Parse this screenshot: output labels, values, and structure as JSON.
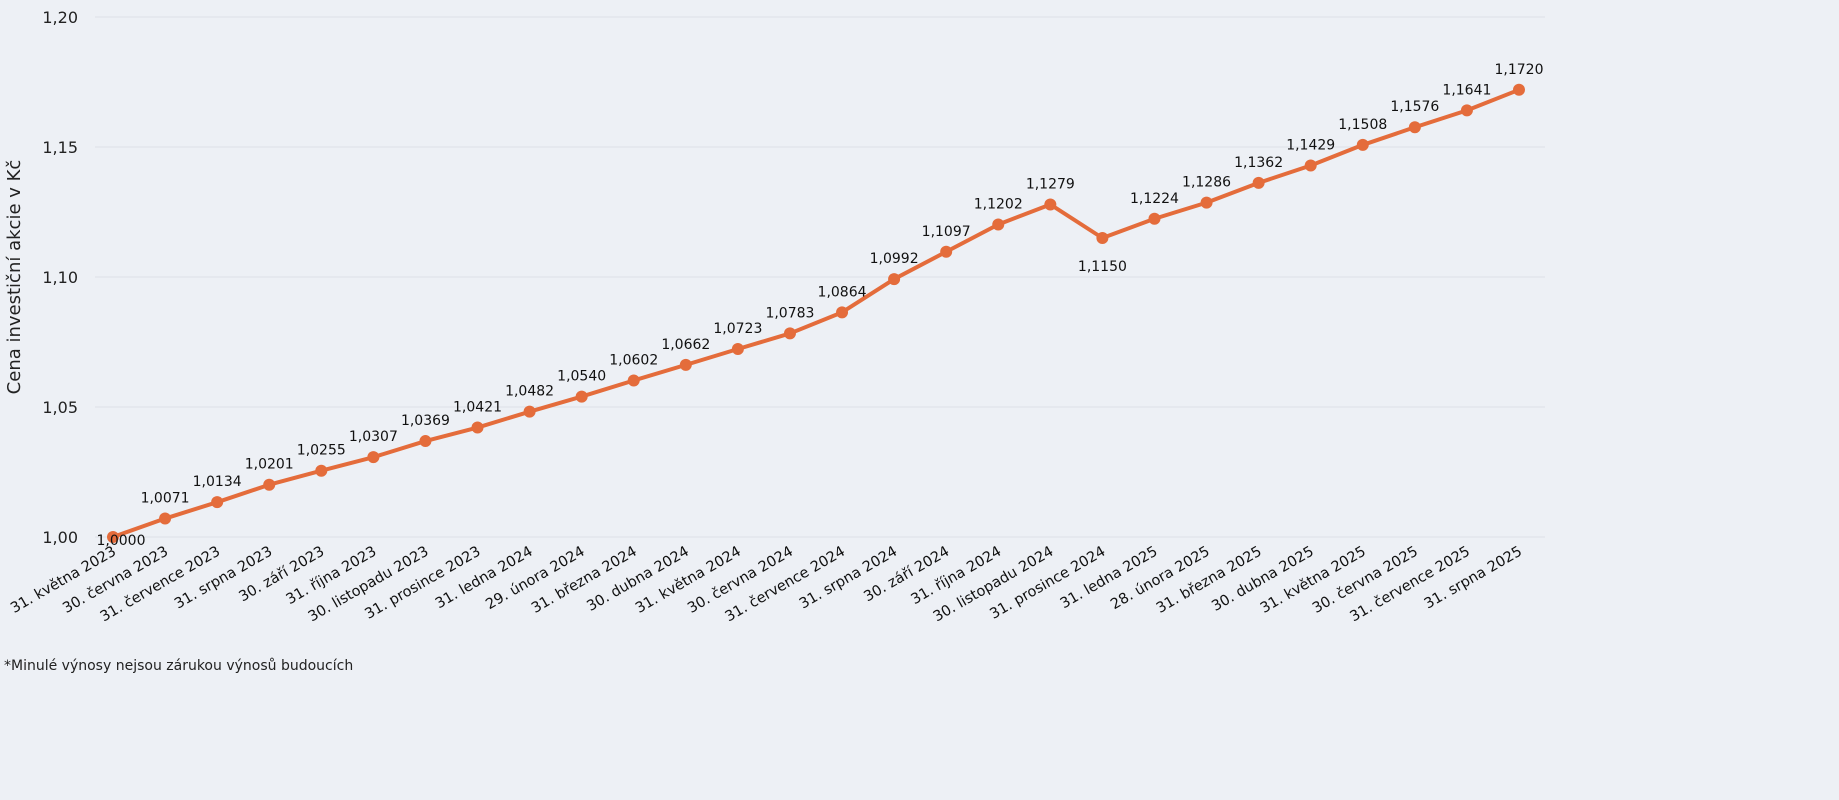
{
  "chart_data": {
    "type": "line",
    "title": "",
    "xlabel": "",
    "ylabel": "Cena investiční akcie v Kč",
    "ylim": [
      1.0,
      1.2
    ],
    "yticks": [
      "1,00",
      "1,05",
      "1,10",
      "1,15",
      "1,20"
    ],
    "ytick_values": [
      1.0,
      1.05,
      1.1,
      1.15,
      1.2
    ],
    "grid": true,
    "line_color": "#e46c3b",
    "categories": [
      "31. května 2023",
      "30. června 2023",
      "31. července 2023",
      "31. srpna 2023",
      "30. září 2023",
      "31. října 2023",
      "30. listopadu 2023",
      "31. prosince 2023",
      "31. ledna 2024",
      "29. února 2024",
      "31. března 2024",
      "30. dubna 2024",
      "31. května 2024",
      "30. června 2024",
      "31. července 2024",
      "31. srpna 2024",
      "30. září 2024",
      "31. října 2024",
      "30. listopadu 2024",
      "31. prosince 2024",
      "31. ledna 2025",
      "28. února 2025",
      "31. března 2025",
      "30. dubna 2025",
      "31. května 2025",
      "30. června 2025",
      "31. července 2025",
      "31. srpna 2025"
    ],
    "values": [
      1.0,
      1.0071,
      1.0134,
      1.0201,
      1.0255,
      1.0307,
      1.0369,
      1.0421,
      1.0482,
      1.054,
      1.0602,
      1.0662,
      1.0723,
      1.0783,
      1.0864,
      1.0992,
      1.1097,
      1.1202,
      1.1279,
      1.115,
      1.1224,
      1.1286,
      1.1362,
      1.1429,
      1.1508,
      1.1576,
      1.1641,
      1.172
    ],
    "data_labels": [
      "1,0000",
      "1,0071",
      "1,0134",
      "1,0201",
      "1,0255",
      "1,0307",
      "1,0369",
      "1,0421",
      "1,0482",
      "1,0540",
      "1,0602",
      "1,0662",
      "1,0723",
      "1,0783",
      "1,0864",
      "1,0992",
      "1,1097",
      "1,1202",
      "1,1279",
      "1,1150",
      "1,1224",
      "1,1286",
      "1,1362",
      "1,1429",
      "1,1508",
      "1,1576",
      "1,1641",
      "1,1720"
    ]
  },
  "footnote": "*Minulé výnosy nejsou zárukou výnosů budoucích"
}
